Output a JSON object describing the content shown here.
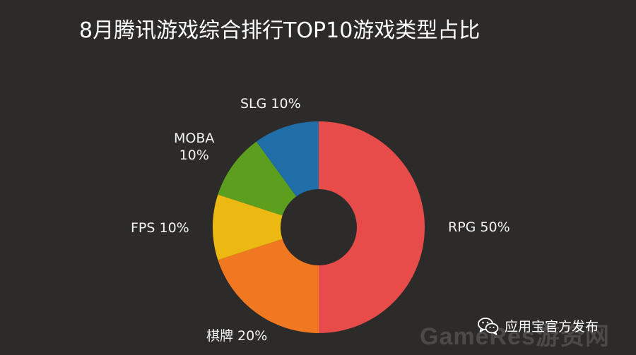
{
  "chart_data": {
    "type": "pie",
    "title": "8月腾讯游戏综合排行TOP10游戏类型占比",
    "donut": true,
    "slices": [
      {
        "name": "RPG",
        "value": 50,
        "label": "RPG 50%",
        "color": "#e74c4a"
      },
      {
        "name": "棋牌",
        "value": 20,
        "label": "棋牌 20%",
        "color": "#f07820"
      },
      {
        "name": "FPS",
        "value": 10,
        "label": "FPS 10%",
        "color": "#ecb912"
      },
      {
        "name": "MOBA",
        "value": 10,
        "label_lines": [
          "MOBA",
          "10%"
        ],
        "color": "#5c9e1e"
      },
      {
        "name": "SLG",
        "value": 10,
        "label": "SLG 10%",
        "color": "#1f6ea8"
      }
    ]
  },
  "footer": {
    "wechat_text": "应用宝官方发布",
    "watermark": "GameRes游资网"
  },
  "icons": {
    "wechat": "wechat-icon"
  }
}
